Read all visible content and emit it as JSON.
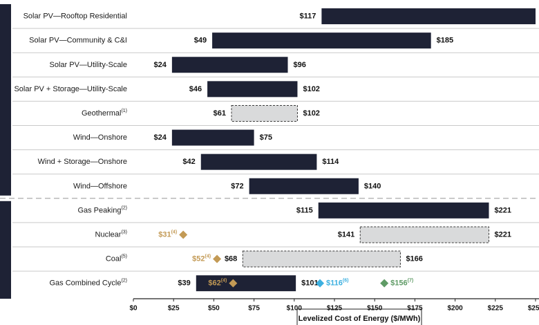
{
  "colors": {
    "bar_solid": "#1e2235",
    "bar_dashed_fill": "#d9dadb",
    "bar_dashed_border": "#3a3a3a",
    "gold": "#c39a55",
    "blue": "#3cb0e0",
    "green": "#5f9b66",
    "sidebar": "#1e2235",
    "row_divider": "#c9c9c9",
    "group_divider": "#a0a0a0"
  },
  "chart_data": {
    "type": "bar",
    "orientation": "horizontal-range",
    "xlabel": "Levelized Cost of Energy ($/MWh)",
    "xlim": [
      0,
      250
    ],
    "x_ticks": [
      0,
      25,
      50,
      75,
      100,
      125,
      150,
      175,
      200,
      225,
      250
    ],
    "x_tick_labels": [
      "$0",
      "$25",
      "$50",
      "$75",
      "$100",
      "$125",
      "$150",
      "$175",
      "$200",
      "$225",
      "$250"
    ],
    "categories": [
      {
        "name": "Solar PV—Rooftop Residential",
        "note": "",
        "low": 117,
        "high": 250,
        "low_label": "$117",
        "high_label": "",
        "style": "solid"
      },
      {
        "name": "Solar PV—Community & C&I",
        "note": "",
        "low": 49,
        "high": 185,
        "low_label": "$49",
        "high_label": "$185",
        "style": "solid"
      },
      {
        "name": "Solar PV—Utility-Scale",
        "note": "",
        "low": 24,
        "high": 96,
        "low_label": "$24",
        "high_label": "$96",
        "style": "solid"
      },
      {
        "name": "Solar PV + Storage—Utility-Scale",
        "note": "",
        "low": 46,
        "high": 102,
        "low_label": "$46",
        "high_label": "$102",
        "style": "solid"
      },
      {
        "name": "Geothermal",
        "note": "(1)",
        "low": 61,
        "high": 102,
        "low_label": "$61",
        "high_label": "$102",
        "style": "dashed"
      },
      {
        "name": "Wind—Onshore",
        "note": "",
        "low": 24,
        "high": 75,
        "low_label": "$24",
        "high_label": "$75",
        "style": "solid"
      },
      {
        "name": "Wind + Storage—Onshore",
        "note": "",
        "low": 42,
        "high": 114,
        "low_label": "$42",
        "high_label": "$114",
        "style": "solid"
      },
      {
        "name": "Wind—Offshore",
        "note": "",
        "low": 72,
        "high": 140,
        "low_label": "$72",
        "high_label": "$140",
        "style": "solid"
      },
      {
        "name": "Gas Peaking",
        "note": "(2)",
        "low": 115,
        "high": 221,
        "low_label": "$115",
        "high_label": "$221",
        "style": "solid"
      },
      {
        "name": "Nuclear",
        "note": "(3)",
        "low": 141,
        "high": 221,
        "low_label": "$141",
        "high_label": "$221",
        "style": "dashed"
      },
      {
        "name": "Coal",
        "note": "(5)",
        "low": 68,
        "high": 166,
        "low_label": "$68",
        "high_label": "$166",
        "style": "dashed"
      },
      {
        "name": "Gas Combined Cycle",
        "note": "(2)",
        "low": 39,
        "high": 101,
        "low_label": "$39",
        "high_label": "$101",
        "style": "solid"
      }
    ],
    "markers": [
      {
        "category_index": 9,
        "value": 31,
        "label": "$31",
        "note": "(4)",
        "color": "gold",
        "label_side": "left"
      },
      {
        "category_index": 10,
        "value": 52,
        "label": "$52",
        "note": "(4)",
        "color": "gold",
        "label_side": "left"
      },
      {
        "category_index": 11,
        "value": 62,
        "label": "$62",
        "note": "(4)",
        "color": "gold",
        "label_side": "left"
      },
      {
        "category_index": 11,
        "value": 116,
        "label": "$116",
        "note": "(6)",
        "color": "blue",
        "label_side": "right"
      },
      {
        "category_index": 11,
        "value": 156,
        "label": "$156",
        "note": "(7)",
        "color": "green",
        "label_side": "right"
      }
    ],
    "group_divider_after_index": 7,
    "grid": false
  }
}
